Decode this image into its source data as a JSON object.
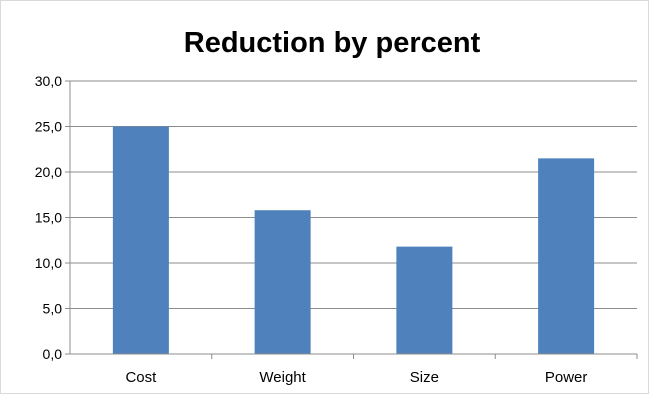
{
  "chart_data": {
    "type": "bar",
    "title": "Reduction by percent",
    "xlabel": "",
    "ylabel": "",
    "categories": [
      "Cost",
      "Weight",
      "Size",
      "Power"
    ],
    "values": [
      25.0,
      15.8,
      11.8,
      21.5
    ],
    "ylim": [
      0,
      30
    ],
    "yticks": [
      "0,0",
      "5,0",
      "10,0",
      "15,0",
      "20,0",
      "25,0",
      "30,0"
    ],
    "grid": true,
    "legend": "none",
    "bar_color": "#4f81bd"
  }
}
